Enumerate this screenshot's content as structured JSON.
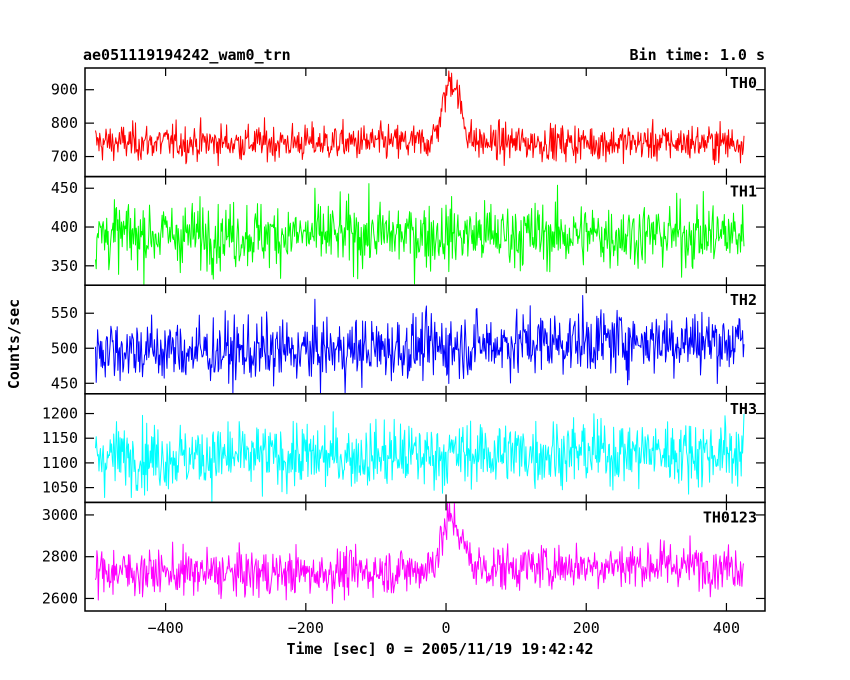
{
  "chart_data": {
    "type": "line",
    "title": "ae051119194242_wam0_trn",
    "subtitle": "Bin time: 1.0 s",
    "xlabel": "Time [sec] 0 = 2005/11/19 19:42:42",
    "ylabel": "Counts/sec",
    "xlim": [
      -515,
      455
    ],
    "x_ticks": [
      -400,
      -200,
      0,
      200,
      400
    ],
    "x_tick_labels": [
      "−400",
      "−200",
      "0",
      "200",
      "400"
    ],
    "data_range": [
      -500,
      425
    ],
    "bin_time_s": 1.0,
    "grid": false,
    "panels": [
      {
        "name": "TH0",
        "color": "#ff0000",
        "ylim": [
          640,
          965
        ],
        "ticks": [
          700,
          800,
          900
        ],
        "tick_labels": [
          "700",
          "800",
          "900"
        ],
        "baseline": 742,
        "noise": 27,
        "drift": 0,
        "burst_peak": 930,
        "burst_center": 8,
        "burst_width": 12
      },
      {
        "name": "TH1",
        "color": "#00ff00",
        "ylim": [
          325,
          465
        ],
        "ticks": [
          350,
          400,
          450
        ],
        "tick_labels": [
          "350",
          "400",
          "450"
        ],
        "baseline": 390,
        "noise": 21,
        "drift": 0,
        "burst_peak": 0,
        "burst_center": 8,
        "burst_width": 12
      },
      {
        "name": "TH2",
        "color": "#0000ff",
        "ylim": [
          435,
          590
        ],
        "ticks": [
          450,
          500,
          550
        ],
        "tick_labels": [
          "450",
          "500",
          "550"
        ],
        "baseline": 503,
        "noise": 23,
        "drift": 8,
        "burst_peak": 0,
        "burst_center": 8,
        "burst_width": 12
      },
      {
        "name": "TH3",
        "color": "#00ffff",
        "ylim": [
          1020,
          1240
        ],
        "ticks": [
          1050,
          1100,
          1150,
          1200
        ],
        "tick_labels": [
          "1050",
          "1100",
          "1150",
          "1200"
        ],
        "baseline": 1117,
        "noise": 33,
        "drift": 5,
        "burst_peak": 0,
        "burst_center": 8,
        "burst_width": 12
      },
      {
        "name": "TH0123",
        "color": "#ff00ff",
        "ylim": [
          2540,
          3060
        ],
        "ticks": [
          2600,
          2800,
          3000
        ],
        "tick_labels": [
          "2600",
          "2800",
          "3000"
        ],
        "baseline": 2740,
        "noise": 55,
        "drift": 20,
        "burst_peak": 2980,
        "burst_center": 8,
        "burst_width": 14
      }
    ]
  }
}
